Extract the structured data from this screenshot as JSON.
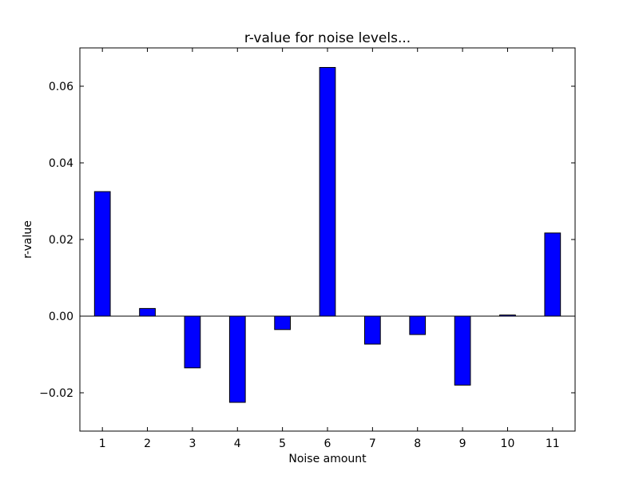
{
  "chart_data": {
    "type": "bar",
    "title": "r-value for noise levels...",
    "xlabel": "Noise amount",
    "ylabel": "r-value",
    "categories": [
      "1",
      "2",
      "3",
      "4",
      "5",
      "6",
      "7",
      "8",
      "9",
      "10",
      "11"
    ],
    "values": [
      0.0325,
      0.002,
      -0.0135,
      -0.0225,
      -0.0035,
      0.0649,
      -0.0073,
      -0.0048,
      -0.018,
      0.0003,
      0.0217
    ],
    "ylim": [
      -0.03,
      0.07
    ],
    "yticks": [
      -0.02,
      0.0,
      0.02,
      0.04,
      0.06
    ],
    "ytick_labels": [
      "−0.02",
      "0.00",
      "0.02",
      "0.04",
      "0.06"
    ],
    "xlim": [
      0.5,
      11.5
    ],
    "bar_color": "#0000ff",
    "grid": false,
    "zero_line": true
  }
}
